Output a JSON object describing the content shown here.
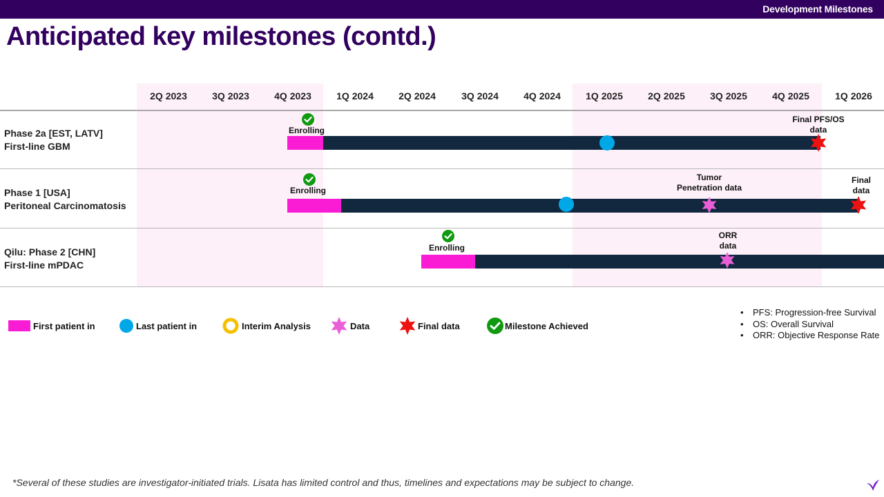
{
  "header": {
    "section_label": "Development Milestones"
  },
  "page_title": "Anticipated key milestones (contd.)",
  "timeline": {
    "quarters": [
      "2Q 2023",
      "3Q 2023",
      "4Q 2023",
      "1Q 2024",
      "2Q 2024",
      "3Q 2024",
      "4Q 2024",
      "1Q 2025",
      "2Q 2025",
      "3Q 2025",
      "4Q 2025",
      "1Q 2026"
    ],
    "rows": [
      {
        "label_line1": "Phase 2a [EST, LATV]",
        "label_line2": "First-line GBM",
        "status_label": "Enrolling",
        "final_label_1": "Final PFS/OS",
        "final_label_2": "data"
      },
      {
        "label_line1": "Phase 1 [USA]",
        "label_line2": "Peritoneal Carcinomatosis",
        "status_label": "Enrolling",
        "data_label_1": "Tumor",
        "data_label_2": "Penetration data",
        "final_label_1": "Final",
        "final_label_2": "data"
      },
      {
        "label_line1": "Qilu: Phase 2 [CHN]",
        "label_line2": "First-line mPDAC",
        "status_label": "Enrolling",
        "data_label_1": "ORR",
        "data_label_2": "data"
      }
    ]
  },
  "legend": {
    "first_patient_in": "First patient in",
    "last_patient_in": "Last patient in",
    "interim_analysis": "Interim Analysis",
    "data": "Data",
    "final_data": "Final data",
    "milestone_achieved": "Milestone Achieved"
  },
  "abbreviations": [
    "PFS: Progression-free Survival",
    "OS: Overall Survival",
    "ORR: Objective Response Rate"
  ],
  "footnote": "*Several of these studies are investigator-initiated trials. Lisata has limited control and thus, timelines and expectations may be subject to change.",
  "colors": {
    "brand": "#32005f",
    "first_patient_in": "#f91cd4",
    "last_patient_in": "#00a8e8",
    "interim_analysis": "#f5c000",
    "data": "#e95fd8",
    "final_data": "#ee1111",
    "milestone_achieved": "#109a10",
    "study_period": "#11283f"
  },
  "icons": {
    "logo": "lisata-leaf-icon"
  }
}
